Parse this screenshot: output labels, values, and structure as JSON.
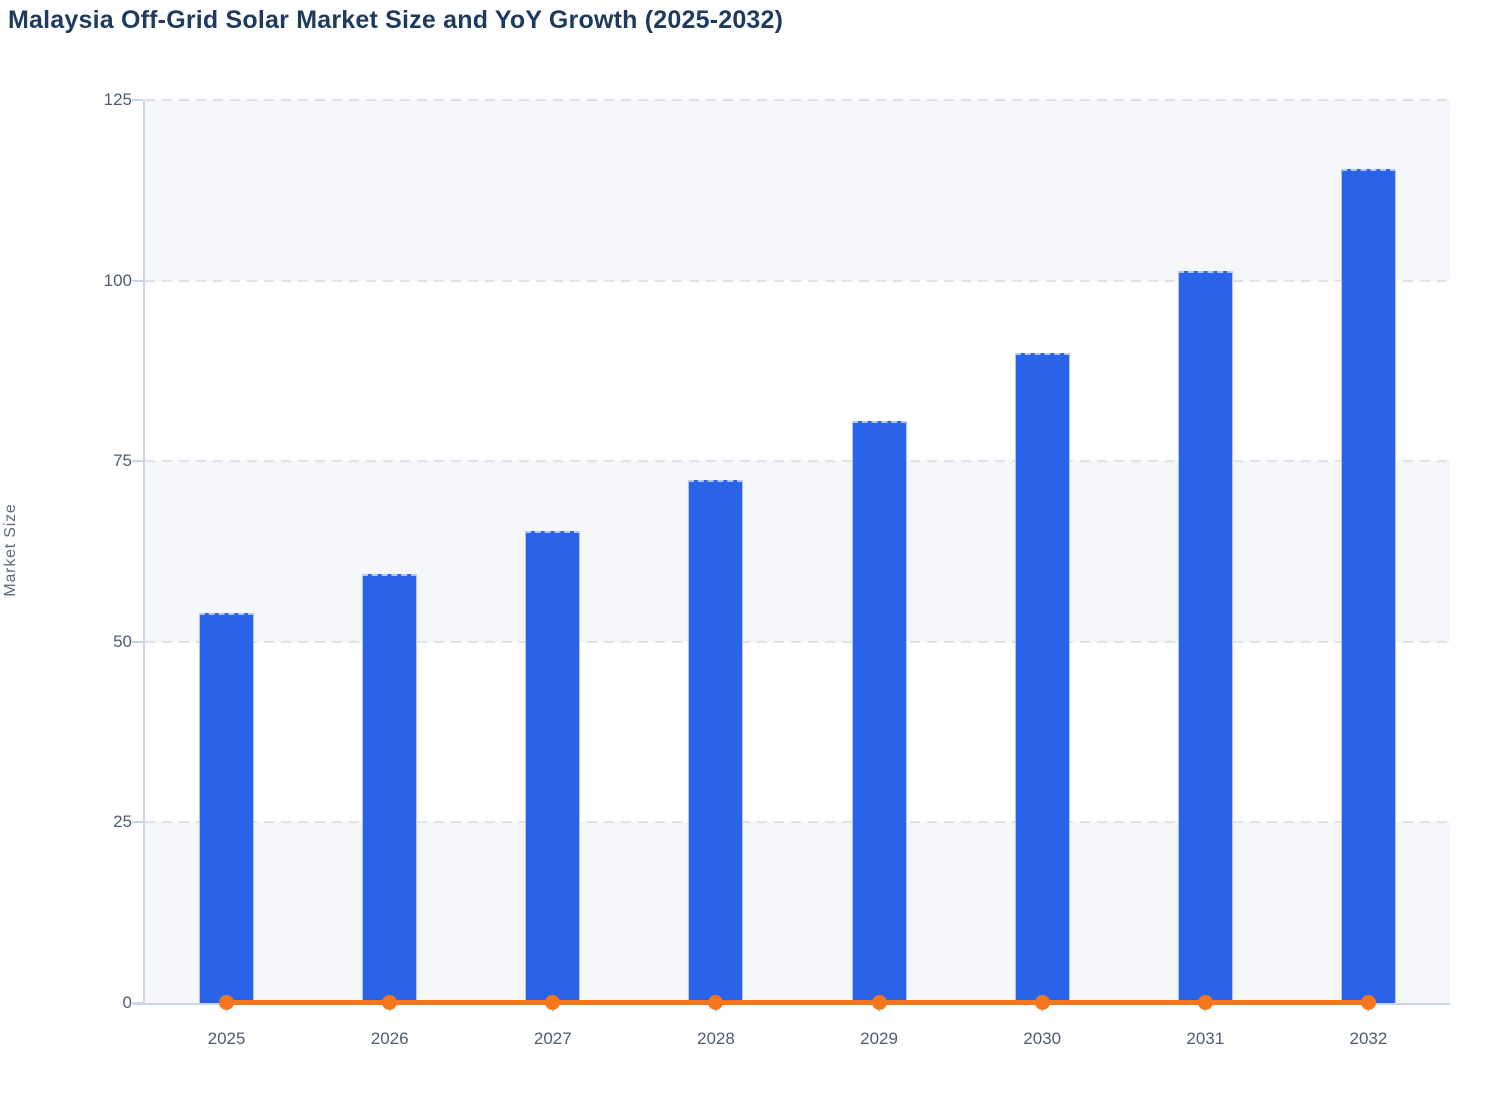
{
  "title": "Malaysia Off-Grid Solar Market Size and YoY Growth (2025-2032)",
  "colors": {
    "bar": "#2A63EA",
    "line": "#F5771D",
    "title_text": "#1E3A5F",
    "tick_text": "#4D5C6F",
    "axis_title_text": "#5D6B7E",
    "band_shade": "#F5F6FA",
    "band_plain": "#FFFFFF",
    "gridline": "#DEE1E7",
    "axis_line": "#CBD5EE"
  },
  "chart_data": {
    "type": "bar",
    "title": "Malaysia Off-Grid Solar Market Size and YoY Growth (2025-2032)",
    "categories": [
      "2025",
      "2026",
      "2027",
      "2028",
      "2029",
      "2030",
      "2031",
      "2032"
    ],
    "series": [
      {
        "name": "Market Size",
        "type": "bar",
        "color": "#2A63EA",
        "values": [
          54,
          59.4,
          65.4,
          72.4,
          80.5,
          90,
          101.4,
          115.4
        ]
      },
      {
        "name": "YoY Growth",
        "type": "line",
        "color": "#F5771D",
        "marker": "circle",
        "values": [
          0.1,
          0.1,
          0.1,
          0.1,
          0.1,
          0.1,
          0.1,
          0.1
        ]
      }
    ],
    "xlabel": "",
    "ylabel": "Market Size",
    "ylim": [
      0,
      125
    ],
    "yticks": [
      0,
      25,
      50,
      75,
      100,
      125
    ],
    "grid": "horizontal dashed",
    "plot_bands": "alternating shaded/plain rows of 25 units, shaded at top",
    "legend_position": "none"
  }
}
